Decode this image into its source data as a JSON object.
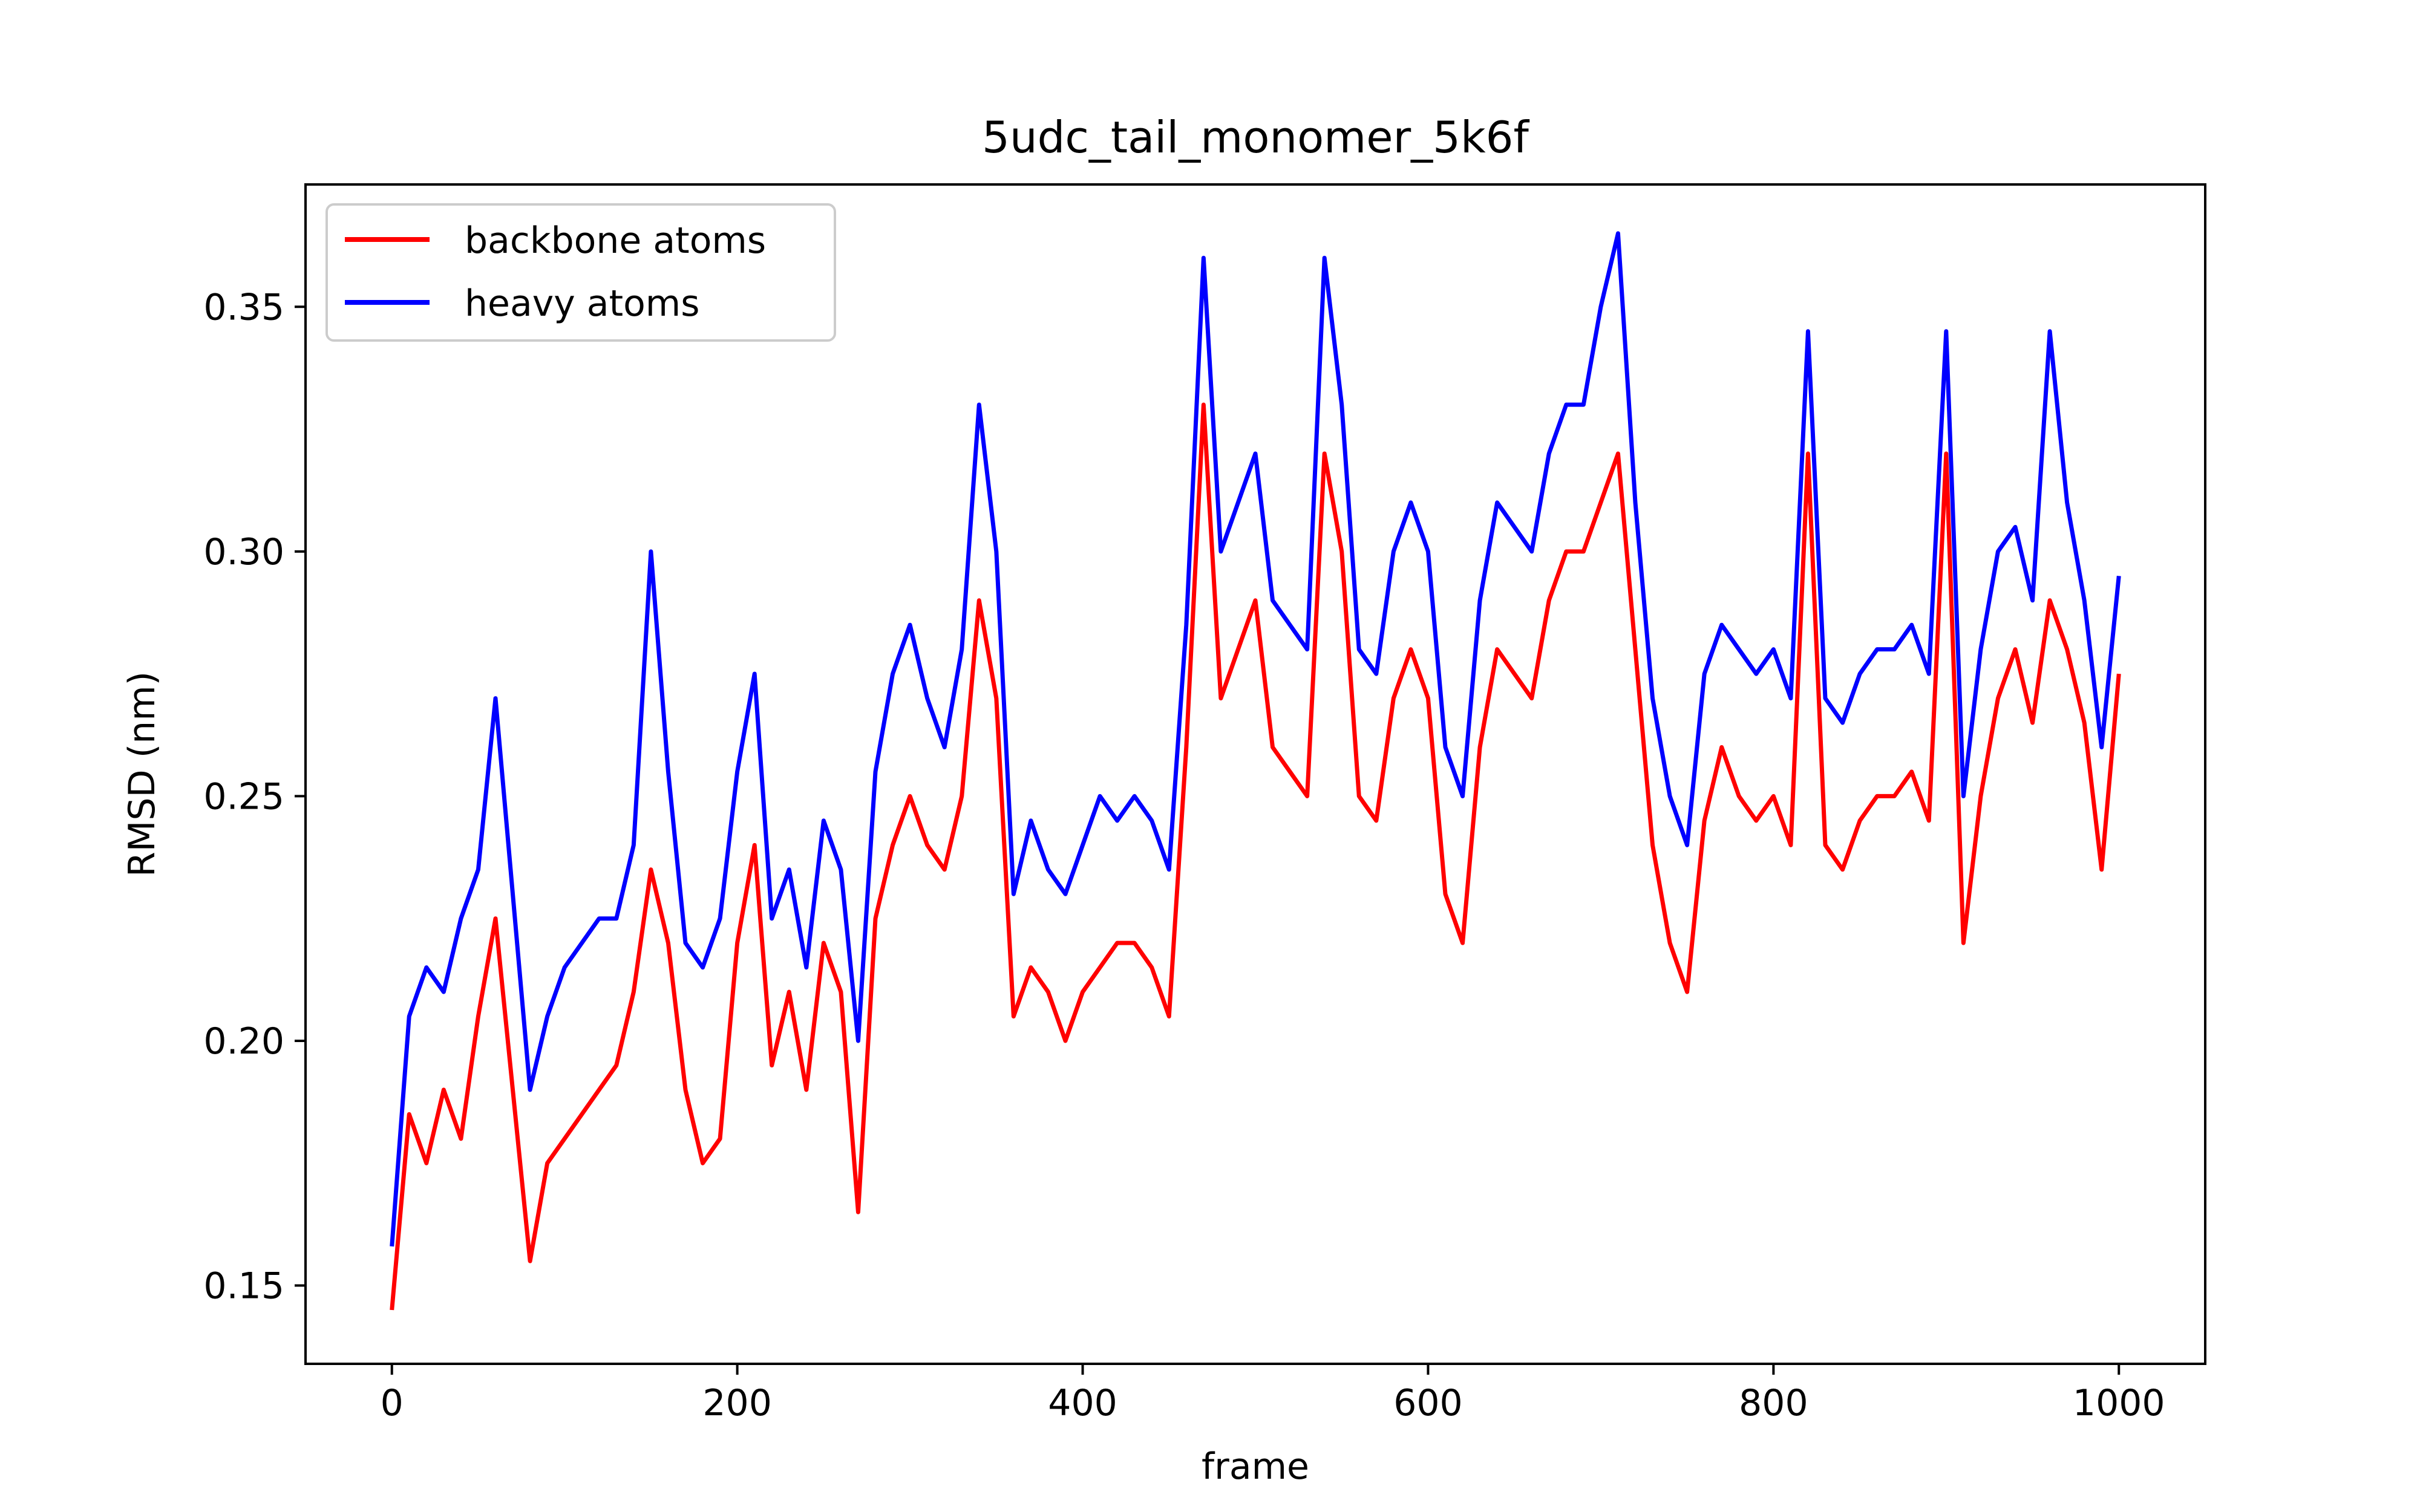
{
  "chart_data": {
    "type": "line",
    "title": "5udc_tail_monomer_5k6f",
    "xlabel": "frame",
    "ylabel": "RMSD (nm)",
    "xlim": [
      -50,
      1050
    ],
    "ylim": [
      0.134,
      0.375
    ],
    "xticks": [
      0,
      200,
      400,
      600,
      800,
      1000
    ],
    "xtick_labels": [
      "0",
      "200",
      "400",
      "600",
      "800",
      "1000"
    ],
    "yticks": [
      0.15,
      0.2,
      0.25,
      0.3,
      0.35
    ],
    "ytick_labels": [
      "0.15",
      "0.20",
      "0.25",
      "0.30",
      "0.35"
    ],
    "grid": false,
    "legend_position": "top-left",
    "series": [
      {
        "name": "backbone atoms",
        "color": "#ff0000",
        "x": [
          0,
          10,
          20,
          30,
          40,
          50,
          60,
          70,
          80,
          90,
          100,
          110,
          120,
          130,
          140,
          150,
          160,
          170,
          180,
          190,
          200,
          210,
          220,
          230,
          240,
          250,
          260,
          270,
          280,
          290,
          300,
          310,
          320,
          330,
          340,
          350,
          360,
          370,
          380,
          390,
          400,
          410,
          420,
          430,
          440,
          450,
          460,
          470,
          480,
          490,
          500,
          510,
          520,
          530,
          540,
          550,
          560,
          570,
          580,
          590,
          600,
          610,
          620,
          630,
          640,
          650,
          660,
          670,
          680,
          690,
          700,
          710,
          720,
          730,
          740,
          750,
          760,
          770,
          780,
          790,
          800,
          810,
          820,
          830,
          840,
          850,
          860,
          870,
          880,
          890,
          900,
          910,
          920,
          930,
          940,
          950,
          960,
          970,
          980,
          990,
          1000
        ],
        "values": [
          0.145,
          0.185,
          0.175,
          0.19,
          0.18,
          0.205,
          0.225,
          0.19,
          0.155,
          0.175,
          0.18,
          0.185,
          0.19,
          0.195,
          0.21,
          0.235,
          0.22,
          0.19,
          0.175,
          0.18,
          0.22,
          0.24,
          0.195,
          0.21,
          0.19,
          0.22,
          0.21,
          0.165,
          0.225,
          0.24,
          0.25,
          0.24,
          0.235,
          0.25,
          0.29,
          0.27,
          0.205,
          0.215,
          0.21,
          0.2,
          0.21,
          0.215,
          0.22,
          0.22,
          0.215,
          0.205,
          0.26,
          0.33,
          0.27,
          0.28,
          0.29,
          0.26,
          0.255,
          0.25,
          0.32,
          0.3,
          0.25,
          0.245,
          0.27,
          0.28,
          0.27,
          0.23,
          0.22,
          0.26,
          0.28,
          0.275,
          0.27,
          0.29,
          0.3,
          0.3,
          0.31,
          0.32,
          0.28,
          0.24,
          0.22,
          0.21,
          0.245,
          0.26,
          0.25,
          0.245,
          0.25,
          0.24,
          0.32,
          0.24,
          0.235,
          0.245,
          0.25,
          0.25,
          0.255,
          0.245,
          0.32,
          0.22,
          0.25,
          0.27,
          0.28,
          0.265,
          0.29,
          0.28,
          0.265,
          0.235,
          0.275
        ]
      },
      {
        "name": "heavy atoms",
        "color": "#0000ff",
        "x": [
          0,
          10,
          20,
          30,
          40,
          50,
          60,
          70,
          80,
          90,
          100,
          110,
          120,
          130,
          140,
          150,
          160,
          170,
          180,
          190,
          200,
          210,
          220,
          230,
          240,
          250,
          260,
          270,
          280,
          290,
          300,
          310,
          320,
          330,
          340,
          350,
          360,
          370,
          380,
          390,
          400,
          410,
          420,
          430,
          440,
          450,
          460,
          470,
          480,
          490,
          500,
          510,
          520,
          530,
          540,
          550,
          560,
          570,
          580,
          590,
          600,
          610,
          620,
          630,
          640,
          650,
          660,
          670,
          680,
          690,
          700,
          710,
          720,
          730,
          740,
          750,
          760,
          770,
          780,
          790,
          800,
          810,
          820,
          830,
          840,
          850,
          860,
          870,
          880,
          890,
          900,
          910,
          920,
          930,
          940,
          950,
          960,
          970,
          980,
          990,
          1000
        ],
        "values": [
          0.158,
          0.205,
          0.215,
          0.21,
          0.225,
          0.235,
          0.27,
          0.23,
          0.19,
          0.205,
          0.215,
          0.22,
          0.225,
          0.225,
          0.24,
          0.3,
          0.255,
          0.22,
          0.215,
          0.225,
          0.255,
          0.275,
          0.225,
          0.235,
          0.215,
          0.245,
          0.235,
          0.2,
          0.255,
          0.275,
          0.285,
          0.27,
          0.26,
          0.28,
          0.33,
          0.3,
          0.23,
          0.245,
          0.235,
          0.23,
          0.24,
          0.25,
          0.245,
          0.25,
          0.245,
          0.235,
          0.285,
          0.36,
          0.3,
          0.31,
          0.32,
          0.29,
          0.285,
          0.28,
          0.36,
          0.33,
          0.28,
          0.275,
          0.3,
          0.31,
          0.3,
          0.26,
          0.25,
          0.29,
          0.31,
          0.305,
          0.3,
          0.32,
          0.33,
          0.33,
          0.35,
          0.365,
          0.31,
          0.27,
          0.25,
          0.24,
          0.275,
          0.285,
          0.28,
          0.275,
          0.28,
          0.27,
          0.345,
          0.27,
          0.265,
          0.275,
          0.28,
          0.28,
          0.285,
          0.275,
          0.345,
          0.25,
          0.28,
          0.3,
          0.305,
          0.29,
          0.345,
          0.31,
          0.29,
          0.26,
          0.295
        ]
      }
    ]
  }
}
